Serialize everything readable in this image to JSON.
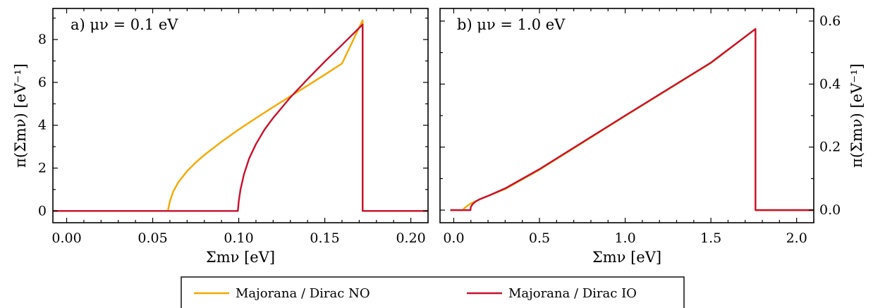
{
  "colors": {
    "normal_ordering": "#f5a800",
    "inverted_ordering": "#c8102e"
  },
  "chart_data": [
    {
      "type": "line",
      "panel_label": "a) μν = 0.1 eV",
      "xlabel": "Σmν [eV]",
      "ylabel": "π(Σmν) [eV⁻¹]",
      "y_axis_side": "left",
      "xlim": [
        -0.008,
        0.21
      ],
      "ylim": [
        -0.55,
        9.45
      ],
      "xticks": [
        0.0,
        0.05,
        0.1,
        0.15,
        0.2
      ],
      "xtick_labels": [
        "0.00",
        "0.05",
        "0.10",
        "0.15",
        "0.20"
      ],
      "yticks": [
        0,
        2,
        4,
        6,
        8
      ],
      "ytick_labels": [
        "0",
        "2",
        "4",
        "6",
        "8"
      ],
      "series": [
        {
          "name": "Majorana / Dirac NO",
          "color": "#f5a800",
          "x": [
            -0.008,
            0.0588,
            0.0588,
            0.06,
            0.062,
            0.065,
            0.07,
            0.075,
            0.08,
            0.09,
            0.1,
            0.11,
            0.12,
            0.13,
            0.14,
            0.15,
            0.16,
            0.172,
            0.172,
            0.21
          ],
          "y": [
            0,
            0,
            0,
            0.45,
            0.92,
            1.35,
            1.86,
            2.26,
            2.61,
            3.23,
            3.8,
            4.33,
            4.85,
            5.35,
            5.85,
            6.36,
            6.88,
            8.9,
            0,
            0
          ]
        },
        {
          "name": "Majorana / Dirac IO",
          "color": "#c8102e",
          "x": [
            -0.008,
            0.0995,
            0.0995,
            0.1,
            0.101,
            0.103,
            0.106,
            0.11,
            0.115,
            0.12,
            0.13,
            0.14,
            0.15,
            0.16,
            0.172,
            0.172,
            0.21
          ],
          "y": [
            0,
            0,
            0,
            0.45,
            0.99,
            1.7,
            2.44,
            3.12,
            3.8,
            4.34,
            5.3,
            6.15,
            6.97,
            7.75,
            8.7,
            0,
            0
          ]
        }
      ]
    },
    {
      "type": "line",
      "panel_label": "b) μν = 1.0 eV",
      "xlabel": "Σmν [eV]",
      "ylabel": "π(Σmν) [eV⁻¹]",
      "y_axis_side": "right",
      "xlim": [
        -0.08,
        2.1
      ],
      "ylim": [
        -0.04,
        0.64
      ],
      "xticks": [
        0.0,
        0.5,
        1.0,
        1.5,
        2.0
      ],
      "xtick_labels": [
        "0.0",
        "0.5",
        "1.0",
        "1.5",
        "2.0"
      ],
      "yticks": [
        0.0,
        0.2,
        0.4,
        0.6
      ],
      "ytick_labels": [
        "0.0",
        "0.2",
        "0.4",
        "0.6"
      ],
      "series": [
        {
          "name": "Majorana / Dirac NO",
          "color": "#f5a800",
          "x": [
            -0.02,
            0.058,
            0.058,
            0.08,
            0.1,
            0.15,
            0.2,
            0.3,
            0.5,
            1.0,
            1.5,
            1.76,
            1.76,
            2.1
          ],
          "y": [
            0,
            0,
            0.004,
            0.014,
            0.021,
            0.034,
            0.045,
            0.067,
            0.128,
            0.299,
            0.467,
            0.575,
            0,
            0
          ]
        },
        {
          "name": "Majorana / Dirac IO",
          "color": "#c8102e",
          "x": [
            -0.02,
            0.098,
            0.098,
            0.1,
            0.11,
            0.13,
            0.15,
            0.2,
            0.3,
            0.5,
            1.0,
            1.5,
            1.76,
            1.76,
            2.1
          ],
          "y": [
            0,
            0,
            0.004,
            0.01,
            0.019,
            0.028,
            0.034,
            0.045,
            0.069,
            0.13,
            0.3,
            0.468,
            0.575,
            0,
            0
          ]
        }
      ]
    }
  ],
  "legend": {
    "placement": "bottom-center",
    "items": [
      {
        "label": "Majorana / Dirac NO",
        "color": "#f5a800"
      },
      {
        "label": "Majorana / Dirac IO",
        "color": "#c8102e"
      }
    ]
  }
}
